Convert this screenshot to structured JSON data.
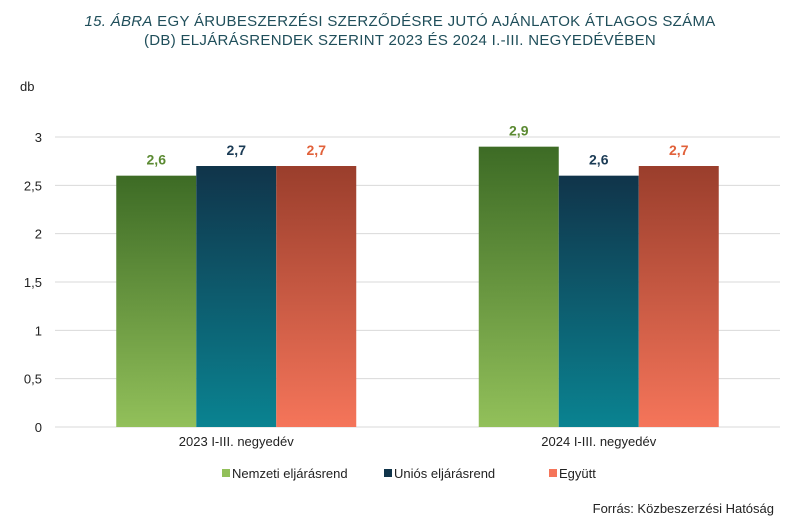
{
  "title": {
    "italic_part": "15. ÁBRA",
    "line1_rest": " EGY ÁRUBESZERZÉSI SZERZŐDÉSRE JUTÓ AJÁNLATOK ÁTLAGOS SZÁMA",
    "line2": "(DB) ELJÁRÁSRENDEK SZERINT 2023 ÉS 2024 I.-III. NEGYEDÉVÉBEN"
  },
  "source": "Forrás: Közbeszerzési Hatóság",
  "colors": {
    "nemzeti_top": "#3d6b25",
    "nemzeti_bottom": "#92c05a",
    "unios_top": "#10344a",
    "unios_bottom": "#0a8391",
    "egyutt_top": "#9a3e2c",
    "egyutt_bottom": "#f5755a",
    "label_nemzeti": "#5b8a32",
    "label_unios": "#1b3b55",
    "label_egyutt": "#e1613a",
    "grid": "#d9d9d9"
  },
  "chart_data": {
    "type": "bar",
    "ylabel": "db",
    "ylim": [
      0,
      3
    ],
    "yticks": [
      "0",
      "0,5",
      "1",
      "1,5",
      "2",
      "2,5",
      "3"
    ],
    "categories": [
      "2023 I-III. negyedév",
      "2024 I-III. negyedév"
    ],
    "series": [
      {
        "name": "Nemzeti eljárásrend",
        "values": [
          2.6,
          2.9
        ],
        "labels": [
          "2,6",
          "2,9"
        ]
      },
      {
        "name": "Uniós eljárásrend",
        "values": [
          2.7,
          2.6
        ],
        "labels": [
          "2,7",
          "2,6"
        ]
      },
      {
        "name": "Együtt",
        "values": [
          2.7,
          2.7
        ],
        "labels": [
          "2,7",
          "2,7"
        ]
      }
    ],
    "legend_position": "bottom",
    "grid": true
  }
}
